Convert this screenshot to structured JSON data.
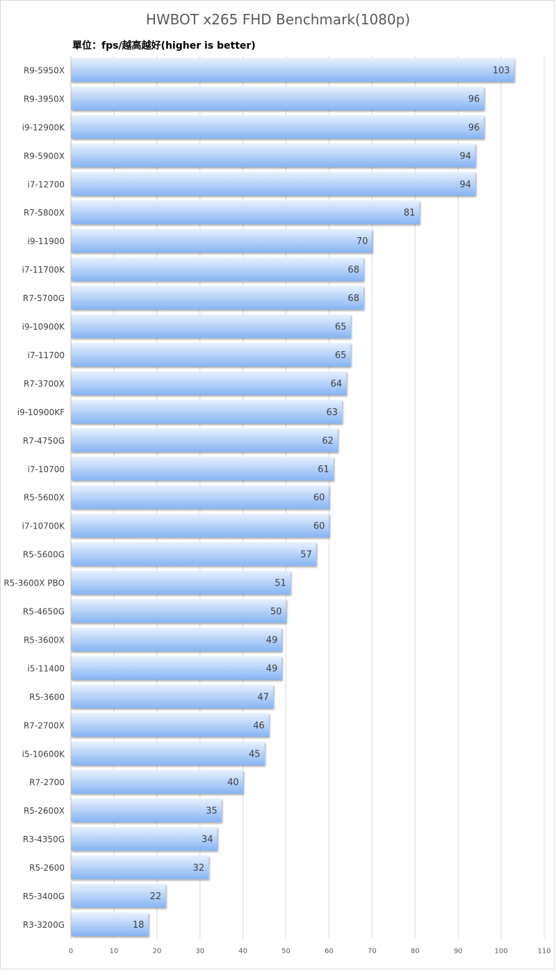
{
  "chart_data": {
    "type": "bar",
    "orientation": "horizontal",
    "title": "HWBOT x265 FHD Benchmark(1080p)",
    "subtitle": "單位：fps/越高越好(higher is better)",
    "categories": [
      "R9-5950X",
      "R9-3950X",
      "i9-12900K",
      "R9-5900X",
      "i7-12700",
      "R7-5800X",
      "i9-11900",
      "i7-11700K",
      "R7-5700G",
      "i9-10900K",
      "i7-11700",
      "R7-3700X",
      "i9-10900KF",
      "R7-4750G",
      "i7-10700",
      "R5-5600X",
      "i7-10700K",
      "R5-5600G",
      "R5-3600X PBO",
      "R5-4650G",
      "R5-3600X",
      "i5-11400",
      "R5-3600",
      "R7-2700X",
      "i5-10600K",
      "R7-2700",
      "R5-2600X",
      "R3-4350G",
      "R5-2600",
      "R5-3400G",
      "R3-3200G"
    ],
    "values": [
      103,
      96,
      96,
      94,
      94,
      81,
      70,
      68,
      68,
      65,
      65,
      64,
      63,
      62,
      61,
      60,
      60,
      57,
      51,
      50,
      49,
      49,
      47,
      46,
      45,
      40,
      35,
      34,
      32,
      22,
      18
    ],
    "xlim": [
      0,
      110
    ],
    "xticks": [
      0,
      10,
      20,
      30,
      40,
      50,
      60,
      70,
      80,
      90,
      100,
      110
    ],
    "grid": true,
    "bar_color": "#8fbcf5"
  }
}
